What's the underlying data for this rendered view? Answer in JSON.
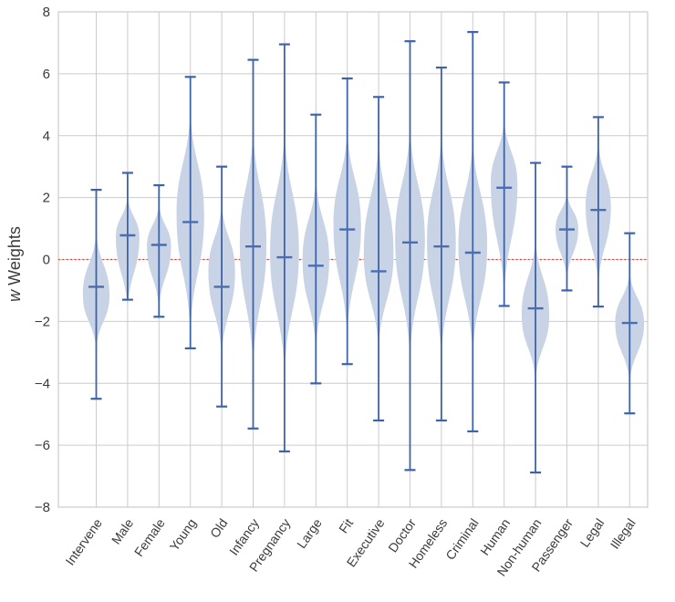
{
  "colors": {
    "background": "#ffffff",
    "grid": "#cccccc",
    "border": "#cccccc",
    "violin_fill": "#c9d3e6",
    "violin_line": "#3d63aa",
    "median_tick": "#4a6cb0",
    "zero_line": "#e13c31",
    "text": "#3a3a3a"
  },
  "chart_data": {
    "type": "violin",
    "title": "",
    "ylabel_w": "w",
    "ylabel_rest": "Weights",
    "xlabel": "",
    "ylim": [
      -8,
      8
    ],
    "grid": true,
    "zero_line_y": 0,
    "yticks": [
      8,
      6,
      4,
      2,
      0,
      -2,
      -4,
      -6,
      -8
    ],
    "ytick_labels": [
      "8",
      "6",
      "4",
      "2",
      "0",
      "−2",
      "−4",
      "−6",
      "−8"
    ],
    "categories": [
      "Intervene",
      "Male",
      "Female",
      "Young",
      "Old",
      "Infancy",
      "Pregnancy",
      "Large",
      "Fit",
      "Executive",
      "Doctor",
      "Homeless",
      "Criminal",
      "Human",
      "Non-human",
      "Passenger",
      "Legal",
      "Illegal"
    ],
    "series": [
      {
        "label": "Intervene",
        "whisker_top": 2.25,
        "median": -0.88,
        "whisker_bottom": -4.5,
        "shade_top": 0.95,
        "shade_bottom": -2.95,
        "bulge": -1.15,
        "width": 0.85
      },
      {
        "label": "Male",
        "whisker_top": 2.8,
        "median": 0.78,
        "whisker_bottom": -1.3,
        "shade_top": 2.1,
        "shade_bottom": -1.7,
        "bulge": 0.72,
        "width": 0.75
      },
      {
        "label": "Female",
        "whisker_top": 2.4,
        "median": 0.47,
        "whisker_bottom": -1.85,
        "shade_top": 1.85,
        "shade_bottom": -1.65,
        "bulge": 0.42,
        "width": 0.77
      },
      {
        "label": "Young",
        "whisker_top": 5.9,
        "median": 1.21,
        "whisker_bottom": -2.87,
        "shade_top": 4.9,
        "shade_bottom": -2.5,
        "bulge": 1.45,
        "width": 0.88
      },
      {
        "label": "Old",
        "whisker_top": 3.0,
        "median": -0.88,
        "whisker_bottom": -4.75,
        "shade_top": 1.9,
        "shade_bottom": -3.2,
        "bulge": -0.4,
        "width": 0.85
      },
      {
        "label": "Infancy",
        "whisker_top": 6.45,
        "median": 0.42,
        "whisker_bottom": -5.46,
        "shade_top": 4.3,
        "shade_bottom": -3.6,
        "bulge": 0.5,
        "width": 0.85
      },
      {
        "label": "Pregnancy",
        "whisker_top": 6.95,
        "median": 0.07,
        "whisker_bottom": -6.2,
        "shade_top": 4.3,
        "shade_bottom": -3.8,
        "bulge": 0.25,
        "width": 0.92
      },
      {
        "label": "Large",
        "whisker_top": 4.68,
        "median": -0.2,
        "whisker_bottom": -4.0,
        "shade_top": 2.7,
        "shade_bottom": -3.0,
        "bulge": 0.0,
        "width": 0.85
      },
      {
        "label": "Fit",
        "whisker_top": 5.85,
        "median": 0.97,
        "whisker_bottom": -3.38,
        "shade_top": 4.3,
        "shade_bottom": -2.6,
        "bulge": 1.1,
        "width": 0.88
      },
      {
        "label": "Executive",
        "whisker_top": 5.25,
        "median": -0.38,
        "whisker_bottom": -5.2,
        "shade_top": 4.0,
        "shade_bottom": -3.0,
        "bulge": 0.2,
        "width": 0.95
      },
      {
        "label": "Doctor",
        "whisker_top": 7.05,
        "median": 0.55,
        "whisker_bottom": -6.8,
        "shade_top": 4.4,
        "shade_bottom": -3.3,
        "bulge": 0.65,
        "width": 0.95
      },
      {
        "label": "Homeless",
        "whisker_top": 6.2,
        "median": 0.42,
        "whisker_bottom": -5.2,
        "shade_top": 4.2,
        "shade_bottom": -3.3,
        "bulge": 0.55,
        "width": 0.92
      },
      {
        "label": "Criminal",
        "whisker_top": 7.35,
        "median": 0.22,
        "whisker_bottom": -5.55,
        "shade_top": 4.0,
        "shade_bottom": -3.2,
        "bulge": 0.45,
        "width": 0.92
      },
      {
        "label": "Human",
        "whisker_top": 5.72,
        "median": 2.32,
        "whisker_bottom": -1.5,
        "shade_top": 4.6,
        "shade_bottom": -1.3,
        "bulge": 2.45,
        "width": 0.85
      },
      {
        "label": "Non-human",
        "whisker_top": 3.12,
        "median": -1.58,
        "whisker_bottom": -6.88,
        "shade_top": 0.75,
        "shade_bottom": -4.0,
        "bulge": -1.8,
        "width": 0.88
      },
      {
        "label": "Passenger",
        "whisker_top": 3.0,
        "median": 0.97,
        "whisker_bottom": -1.0,
        "shade_top": 2.2,
        "shade_bottom": -0.7,
        "bulge": 1.0,
        "width": 0.72
      },
      {
        "label": "Legal",
        "whisker_top": 4.6,
        "median": 1.6,
        "whisker_bottom": -1.52,
        "shade_top": 3.9,
        "shade_bottom": -0.95,
        "bulge": 1.7,
        "width": 0.8
      },
      {
        "label": "Illegal",
        "whisker_top": 0.85,
        "median": -2.05,
        "whisker_bottom": -4.97,
        "shade_top": -0.35,
        "shade_bottom": -4.05,
        "bulge": -2.05,
        "width": 0.92
      }
    ]
  }
}
